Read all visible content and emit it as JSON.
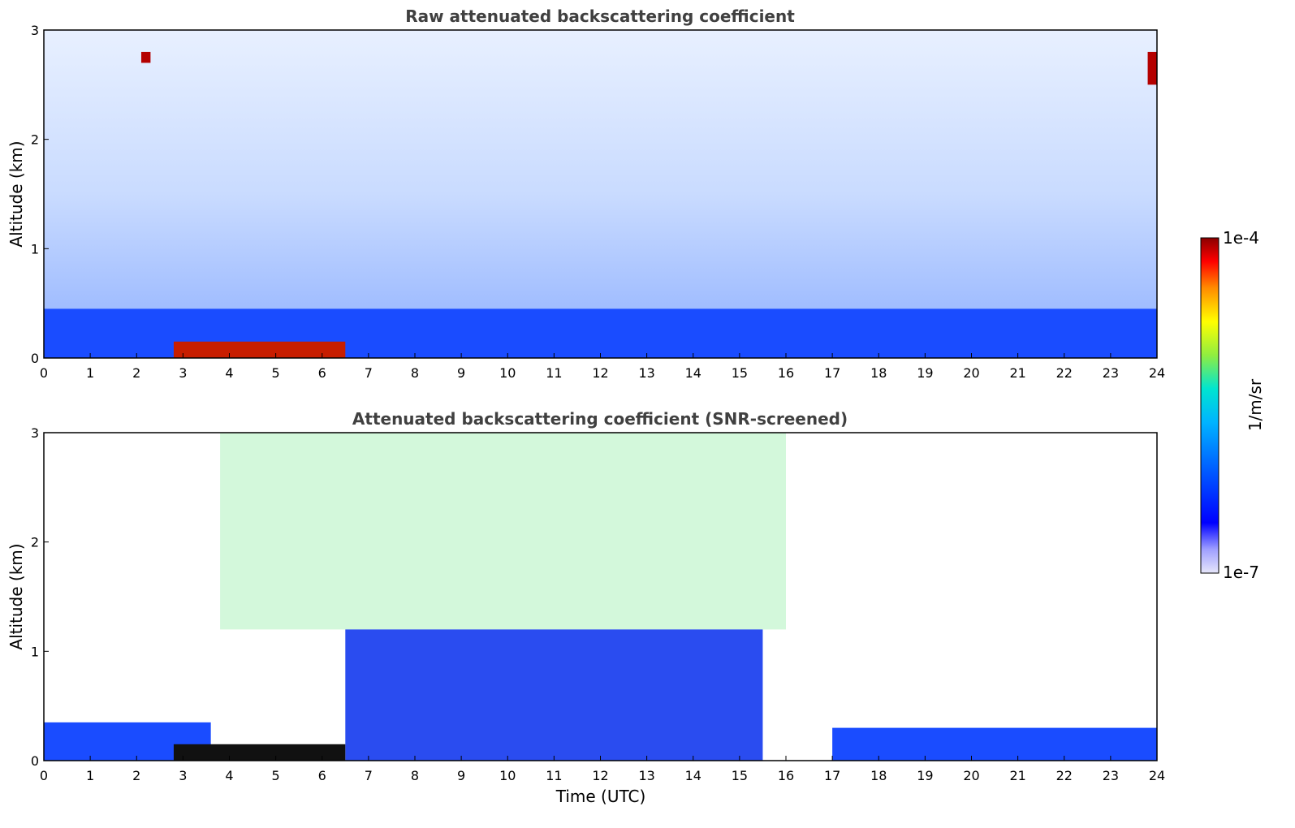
{
  "chart_data": [
    {
      "type": "heatmap",
      "title": "Raw attenuated backscattering coefficient",
      "xlabel": "",
      "ylabel": "Altitude (km)",
      "xlim": [
        0,
        24
      ],
      "ylim": [
        0,
        3
      ],
      "x_ticks": [
        "0",
        "1",
        "2",
        "3",
        "4",
        "5",
        "6",
        "7",
        "8",
        "9",
        "10",
        "11",
        "12",
        "13",
        "14",
        "15",
        "16",
        "17",
        "18",
        "19",
        "20",
        "21",
        "22",
        "23",
        "24"
      ],
      "y_ticks": [
        "0",
        "1",
        "2",
        "3"
      ],
      "features": [
        {
          "name": "boundary-layer",
          "x": [
            0,
            24
          ],
          "top_km": 0.45
        },
        {
          "name": "aerosol-layer",
          "x": [
            2.8,
            6.5
          ],
          "altitude_km": [
            0.0,
            0.15
          ]
        },
        {
          "name": "cloud-top-left",
          "x": [
            2.1,
            2.3
          ],
          "altitude_km": [
            2.7,
            2.8
          ]
        },
        {
          "name": "cloud-top-right",
          "x": [
            23.8,
            24
          ],
          "altitude_km": [
            2.5,
            2.8
          ]
        }
      ]
    },
    {
      "type": "heatmap",
      "title": "Attenuated backscattering coefficient (SNR-screened)",
      "xlabel": "Time (UTC)",
      "ylabel": "Altitude (km)",
      "xlim": [
        0,
        24
      ],
      "ylim": [
        0,
        3
      ],
      "x_ticks": [
        "0",
        "1",
        "2",
        "3",
        "4",
        "5",
        "6",
        "7",
        "8",
        "9",
        "10",
        "11",
        "12",
        "13",
        "14",
        "15",
        "16",
        "17",
        "18",
        "19",
        "20",
        "21",
        "22",
        "23",
        "24"
      ],
      "y_ticks": [
        "0",
        "1",
        "2",
        "3"
      ],
      "features": [
        {
          "name": "boundary-layer",
          "x": [
            0,
            3.6
          ],
          "top_km": 0.35
        },
        {
          "name": "mixed-layer",
          "x": [
            6.5,
            15.5
          ],
          "top_km": 1.2
        },
        {
          "name": "residual-layer",
          "x": [
            17,
            24
          ],
          "top_km": 0.3
        },
        {
          "name": "aerosol-layer",
          "x": [
            2.8,
            6.5
          ],
          "altitude_km": [
            0.0,
            0.15
          ]
        }
      ]
    }
  ],
  "colorbar": {
    "label": "1/m/sr",
    "max_label": "1e-4",
    "min_label": "1e-7",
    "range": [
      1e-07,
      0.0001
    ],
    "scale": "log",
    "colors": [
      "#e6e6fa",
      "#0000ff",
      "#00a0ff",
      "#00e5d0",
      "#90ee40",
      "#ffff00",
      "#ff8c00",
      "#ff0000",
      "#8b0000"
    ]
  }
}
